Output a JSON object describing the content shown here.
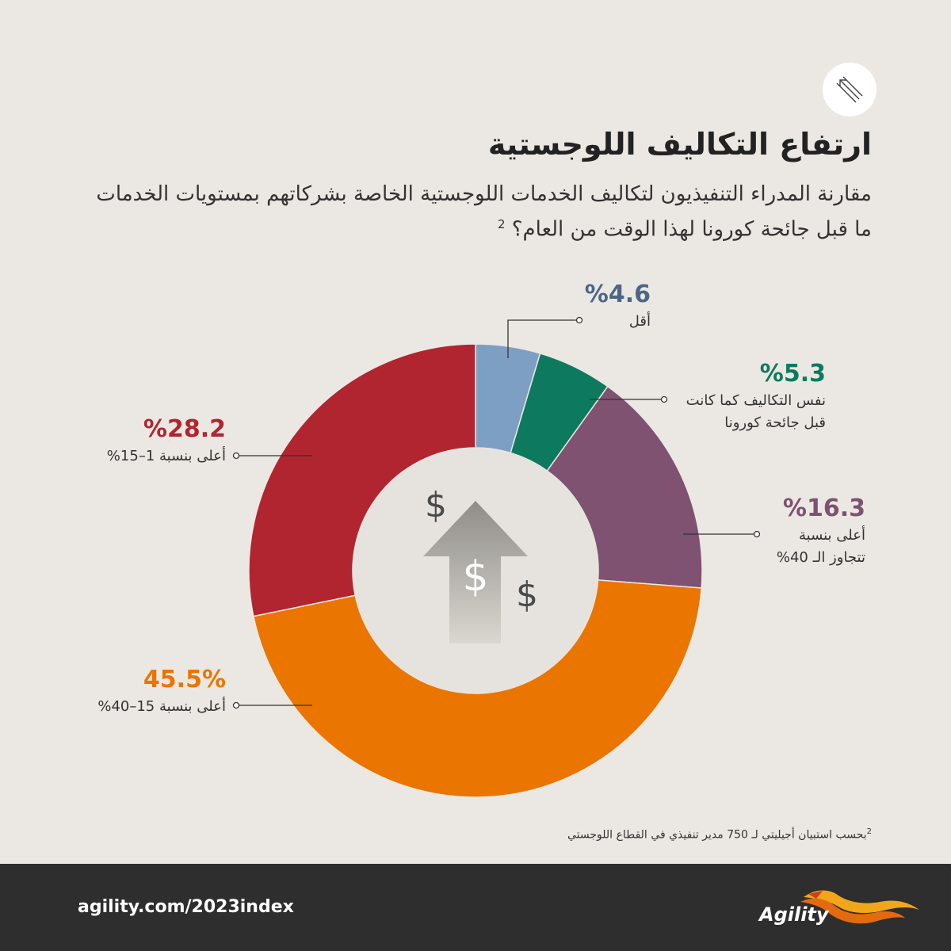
{
  "header": {
    "title": "ارتفاع التكاليف اللوجستية",
    "subtitle_line1": "مقارنة المدراء التنفيذيون لتكاليف الخدمات اللوجستية الخاصة بشركاتهم بمستويات الخدمات",
    "subtitle_line2": "ما قبل جائحة كورونا لهذا الوقت من العام؟",
    "subtitle_sup": "2",
    "icon": "arrows-up-left-icon"
  },
  "chart_data": {
    "type": "pie",
    "slices": [
      {
        "value": 4.6,
        "value_label": "%4.6",
        "label_lines": [
          "أقل"
        ],
        "color": "#7e9fc4"
      },
      {
        "value": 5.3,
        "value_label": "%5.3",
        "label_lines": [
          "نفس التكاليف كما كانت",
          "قبل جائحة كورونا"
        ],
        "color": "#0d7a5f"
      },
      {
        "value": 16.3,
        "value_label": "%16.3",
        "label_lines": [
          "أعلى بنسبة",
          "تتجاوز الـ 40%"
        ],
        "color": "#7e5270"
      },
      {
        "value": 45.5,
        "value_label": "45.5%",
        "label_lines": [
          "أعلى بنسبة 15–40%"
        ],
        "color": "#ea7500"
      },
      {
        "value": 28.2,
        "value_label": "%28.2",
        "label_lines": [
          "أعلى بنسبة 1–15%"
        ],
        "color": "#b0252f"
      }
    ],
    "center_icons": [
      "dollar-sign-icon",
      "dollar-sign-icon",
      "dollar-sign-icon",
      "up-arrow-icon"
    ],
    "center_glyph": "$"
  },
  "footnote": {
    "sup": "2",
    "text": "بحسب استبيان أجيليتي لـ 750 مدير تنفيذي في القطاع اللوجستي"
  },
  "footer": {
    "url": "agility.com/2023index",
    "brand": "Agility",
    "logo_icon": "agility-bird-logo-icon"
  },
  "colors": {
    "background": "#ebe8e3",
    "footer": "#2e2e2e",
    "label_less": "#4c6786",
    "label_same": "#0d7a5f",
    "label_over40": "#7e5270",
    "label_15_40": "#ea7500",
    "label_1_15": "#b0252f"
  }
}
